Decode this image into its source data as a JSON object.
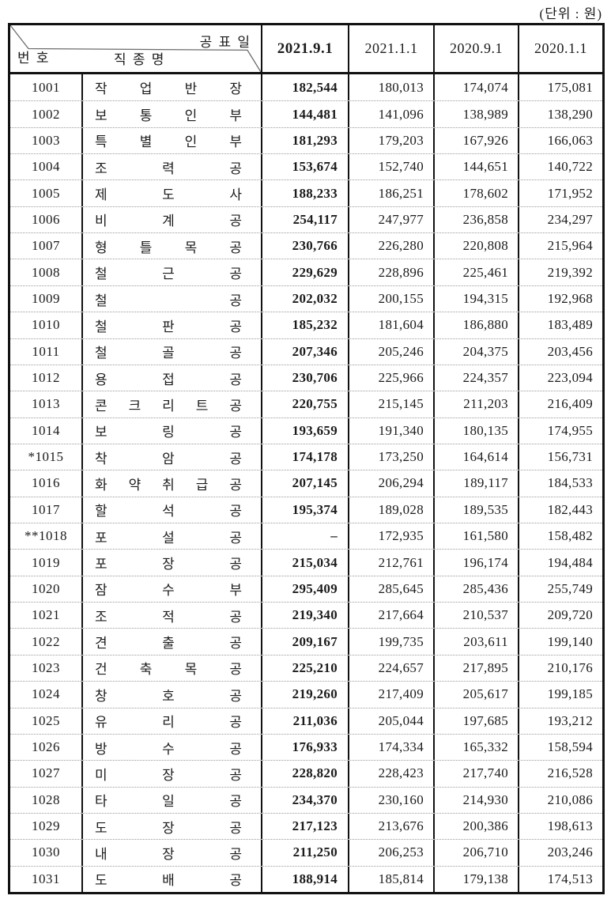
{
  "unit_label": "(단위 : 원)",
  "table": {
    "corner": {
      "top_right_label": "공 표 일",
      "col1_label": "번 호",
      "col2_label": "직 종 명"
    },
    "dates": [
      "2021.9.1",
      "2021.1.1",
      "2020.9.1",
      "2020.1.1"
    ]
  },
  "rows": [
    {
      "no": "1001",
      "name": "작업반장",
      "values": [
        "182,544",
        "180,013",
        "174,074",
        "175,081"
      ]
    },
    {
      "no": "1002",
      "name": "보통인부",
      "values": [
        "144,481",
        "141,096",
        "138,989",
        "138,290"
      ]
    },
    {
      "no": "1003",
      "name": "특별인부",
      "values": [
        "181,293",
        "179,203",
        "167,926",
        "166,063"
      ]
    },
    {
      "no": "1004",
      "name": "조력공",
      "values": [
        "153,674",
        "152,740",
        "144,651",
        "140,722"
      ]
    },
    {
      "no": "1005",
      "name": "제도사",
      "values": [
        "188,233",
        "186,251",
        "178,602",
        "171,952"
      ]
    },
    {
      "no": "1006",
      "name": "비계공",
      "values": [
        "254,117",
        "247,977",
        "236,858",
        "234,297"
      ]
    },
    {
      "no": "1007",
      "name": "형틀목공",
      "values": [
        "230,766",
        "226,280",
        "220,808",
        "215,964"
      ]
    },
    {
      "no": "1008",
      "name": "철근공",
      "values": [
        "229,629",
        "228,896",
        "225,461",
        "219,392"
      ]
    },
    {
      "no": "1009",
      "name": "철공",
      "values": [
        "202,032",
        "200,155",
        "194,315",
        "192,968"
      ]
    },
    {
      "no": "1010",
      "name": "철판공",
      "values": [
        "185,232",
        "181,604",
        "186,880",
        "183,489"
      ]
    },
    {
      "no": "1011",
      "name": "철골공",
      "values": [
        "207,346",
        "205,246",
        "204,375",
        "203,456"
      ]
    },
    {
      "no": "1012",
      "name": "용접공",
      "values": [
        "230,706",
        "225,966",
        "224,357",
        "223,094"
      ]
    },
    {
      "no": "1013",
      "name": "콘크리트공",
      "values": [
        "220,755",
        "215,145",
        "211,203",
        "216,409"
      ]
    },
    {
      "no": "1014",
      "name": "보링공",
      "values": [
        "193,659",
        "191,340",
        "180,135",
        "174,955"
      ]
    },
    {
      "no": "*1015",
      "name": "착암공",
      "values": [
        "174,178",
        "173,250",
        "164,614",
        "156,731"
      ]
    },
    {
      "no": "1016",
      "name": "화약취급공",
      "values": [
        "207,145",
        "206,294",
        "189,117",
        "184,533"
      ]
    },
    {
      "no": "1017",
      "name": "할석공",
      "values": [
        "195,374",
        "189,028",
        "189,535",
        "182,443"
      ]
    },
    {
      "no": "**1018",
      "name": "포설공",
      "values": [
        "–",
        "172,935",
        "161,580",
        "158,482"
      ]
    },
    {
      "no": "1019",
      "name": "포장공",
      "values": [
        "215,034",
        "212,761",
        "196,174",
        "194,484"
      ]
    },
    {
      "no": "1020",
      "name": "잠수부",
      "values": [
        "295,409",
        "285,645",
        "285,436",
        "255,749"
      ]
    },
    {
      "no": "1021",
      "name": "조적공",
      "values": [
        "219,340",
        "217,664",
        "210,537",
        "209,720"
      ]
    },
    {
      "no": "1022",
      "name": "견출공",
      "values": [
        "209,167",
        "199,735",
        "203,611",
        "199,140"
      ]
    },
    {
      "no": "1023",
      "name": "건축목공",
      "values": [
        "225,210",
        "224,657",
        "217,895",
        "210,176"
      ]
    },
    {
      "no": "1024",
      "name": "창호공",
      "values": [
        "219,260",
        "217,409",
        "205,617",
        "199,185"
      ]
    },
    {
      "no": "1025",
      "name": "유리공",
      "values": [
        "211,036",
        "205,044",
        "197,685",
        "193,212"
      ]
    },
    {
      "no": "1026",
      "name": "방수공",
      "values": [
        "176,933",
        "174,334",
        "165,332",
        "158,594"
      ]
    },
    {
      "no": "1027",
      "name": "미장공",
      "values": [
        "228,820",
        "228,423",
        "217,740",
        "216,528"
      ]
    },
    {
      "no": "1028",
      "name": "타일공",
      "values": [
        "234,370",
        "230,160",
        "214,930",
        "210,086"
      ]
    },
    {
      "no": "1029",
      "name": "도장공",
      "values": [
        "217,123",
        "213,676",
        "200,386",
        "198,613"
      ]
    },
    {
      "no": "1030",
      "name": "내장공",
      "values": [
        "211,250",
        "206,253",
        "206,710",
        "203,246"
      ]
    },
    {
      "no": "1031",
      "name": "도배공",
      "values": [
        "188,914",
        "185,814",
        "179,138",
        "174,513"
      ]
    }
  ]
}
